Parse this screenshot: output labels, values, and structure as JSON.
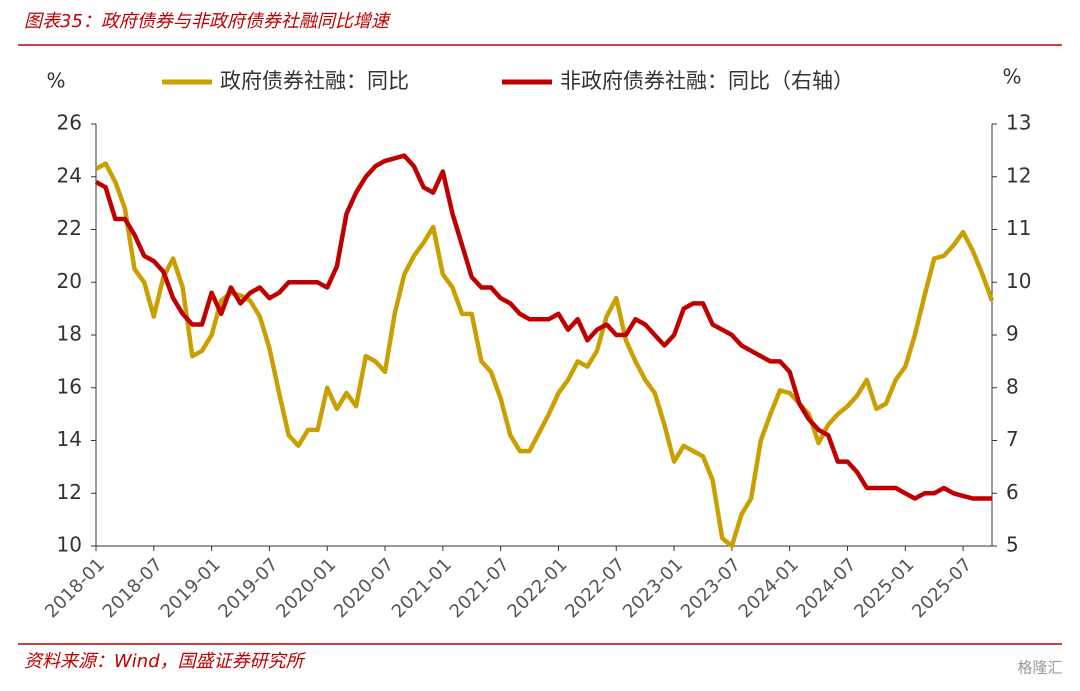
{
  "chart_data": {
    "type": "line",
    "title": "图表35：政府债券与非政府债券社融同比增速",
    "source": "资料来源：Wind，国盛证券研究所",
    "watermark": "格隆汇",
    "y_label": "%",
    "y2_label": "%",
    "categories": [
      "2018-01",
      null,
      null,
      null,
      null,
      null,
      "2018-07",
      null,
      null,
      null,
      null,
      null,
      "2019-01",
      null,
      null,
      null,
      null,
      null,
      "2019-07",
      null,
      null,
      null,
      null,
      null,
      "2020-01",
      null,
      null,
      null,
      null,
      null,
      "2020-07",
      null,
      null,
      null,
      null,
      null,
      "2021-01",
      null,
      null,
      null,
      null,
      null,
      "2021-07",
      null,
      null,
      null,
      null,
      null,
      "2022-01",
      null,
      null,
      null,
      null,
      null,
      "2022-07",
      null,
      null,
      null,
      null,
      null,
      "2023-01",
      null,
      null,
      null,
      null,
      null,
      "2023-07",
      null,
      null,
      null,
      null,
      null,
      "2024-01",
      null,
      null,
      null,
      null,
      null,
      "2024-07",
      null,
      null,
      null,
      null,
      null,
      "2025-01",
      null,
      null,
      null,
      null,
      null,
      "2025-07",
      null,
      null,
      null
    ],
    "series": [
      {
        "name": "政府债券社融：同比",
        "color": "#c9a000",
        "values": [
          24.3,
          24.5,
          23.8,
          22.8,
          20.5,
          20.0,
          18.7,
          20.2,
          20.9,
          19.8,
          17.2,
          17.4,
          18.0,
          19.3,
          19.6,
          19.5,
          19.3,
          18.7,
          17.5,
          15.8,
          14.2,
          13.8,
          14.4,
          14.4,
          16.0,
          15.2,
          15.8,
          15.3,
          17.2,
          17.0,
          16.6,
          18.8,
          20.3,
          21.0,
          21.5,
          22.1,
          20.3,
          19.8,
          18.8,
          18.8,
          17.0,
          16.6,
          15.6,
          14.2,
          13.6,
          13.6,
          14.3,
          15.0,
          15.8,
          16.3,
          17.0,
          16.8,
          17.4,
          18.7,
          19.4,
          17.8,
          17.0,
          16.3,
          15.8,
          14.6,
          13.2,
          13.8,
          13.6,
          13.4,
          12.5,
          10.3,
          10.0,
          11.2,
          11.8,
          14.0,
          15.0,
          15.9,
          15.8,
          15.4,
          15.0,
          13.9,
          14.6,
          15.0,
          15.3,
          15.7,
          16.3,
          15.2,
          15.4,
          16.3,
          16.8,
          18.0,
          19.5,
          20.9,
          21.0,
          21.4,
          21.9,
          21.2,
          20.3,
          19.3
        ]
      },
      {
        "name": "非政府债券社融：同比（右轴）",
        "color": "#c00000",
        "axis": "y2",
        "values": [
          11.9,
          11.8,
          11.2,
          11.2,
          10.9,
          10.5,
          10.4,
          10.2,
          9.7,
          9.4,
          9.2,
          9.2,
          9.8,
          9.4,
          9.9,
          9.6,
          9.8,
          9.9,
          9.7,
          9.8,
          10.0,
          10.0,
          10.0,
          10.0,
          9.9,
          10.3,
          11.3,
          11.7,
          12.0,
          12.2,
          12.3,
          12.35,
          12.4,
          12.2,
          11.8,
          11.7,
          12.1,
          11.3,
          10.7,
          10.1,
          9.9,
          9.9,
          9.7,
          9.6,
          9.4,
          9.3,
          9.3,
          9.3,
          9.4,
          9.1,
          9.3,
          8.9,
          9.1,
          9.2,
          9.0,
          9.0,
          9.3,
          9.2,
          9.0,
          8.8,
          9.0,
          9.5,
          9.6,
          9.6,
          9.2,
          9.1,
          9.0,
          8.8,
          8.7,
          8.6,
          8.5,
          8.5,
          8.3,
          7.7,
          7.4,
          7.2,
          7.1,
          6.6,
          6.6,
          6.4,
          6.1,
          6.1,
          6.1,
          6.1,
          6.0,
          5.9,
          6.0,
          6.0,
          6.1,
          6.0,
          5.95,
          5.9,
          5.9,
          5.9
        ]
      }
    ],
    "ylim": [
      10,
      26
    ],
    "yticks": [
      10,
      12,
      14,
      16,
      18,
      20,
      22,
      24,
      26
    ],
    "y2lim": [
      5,
      13
    ],
    "y2ticks": [
      5,
      6,
      7,
      8,
      9,
      10,
      11,
      12,
      13
    ]
  }
}
